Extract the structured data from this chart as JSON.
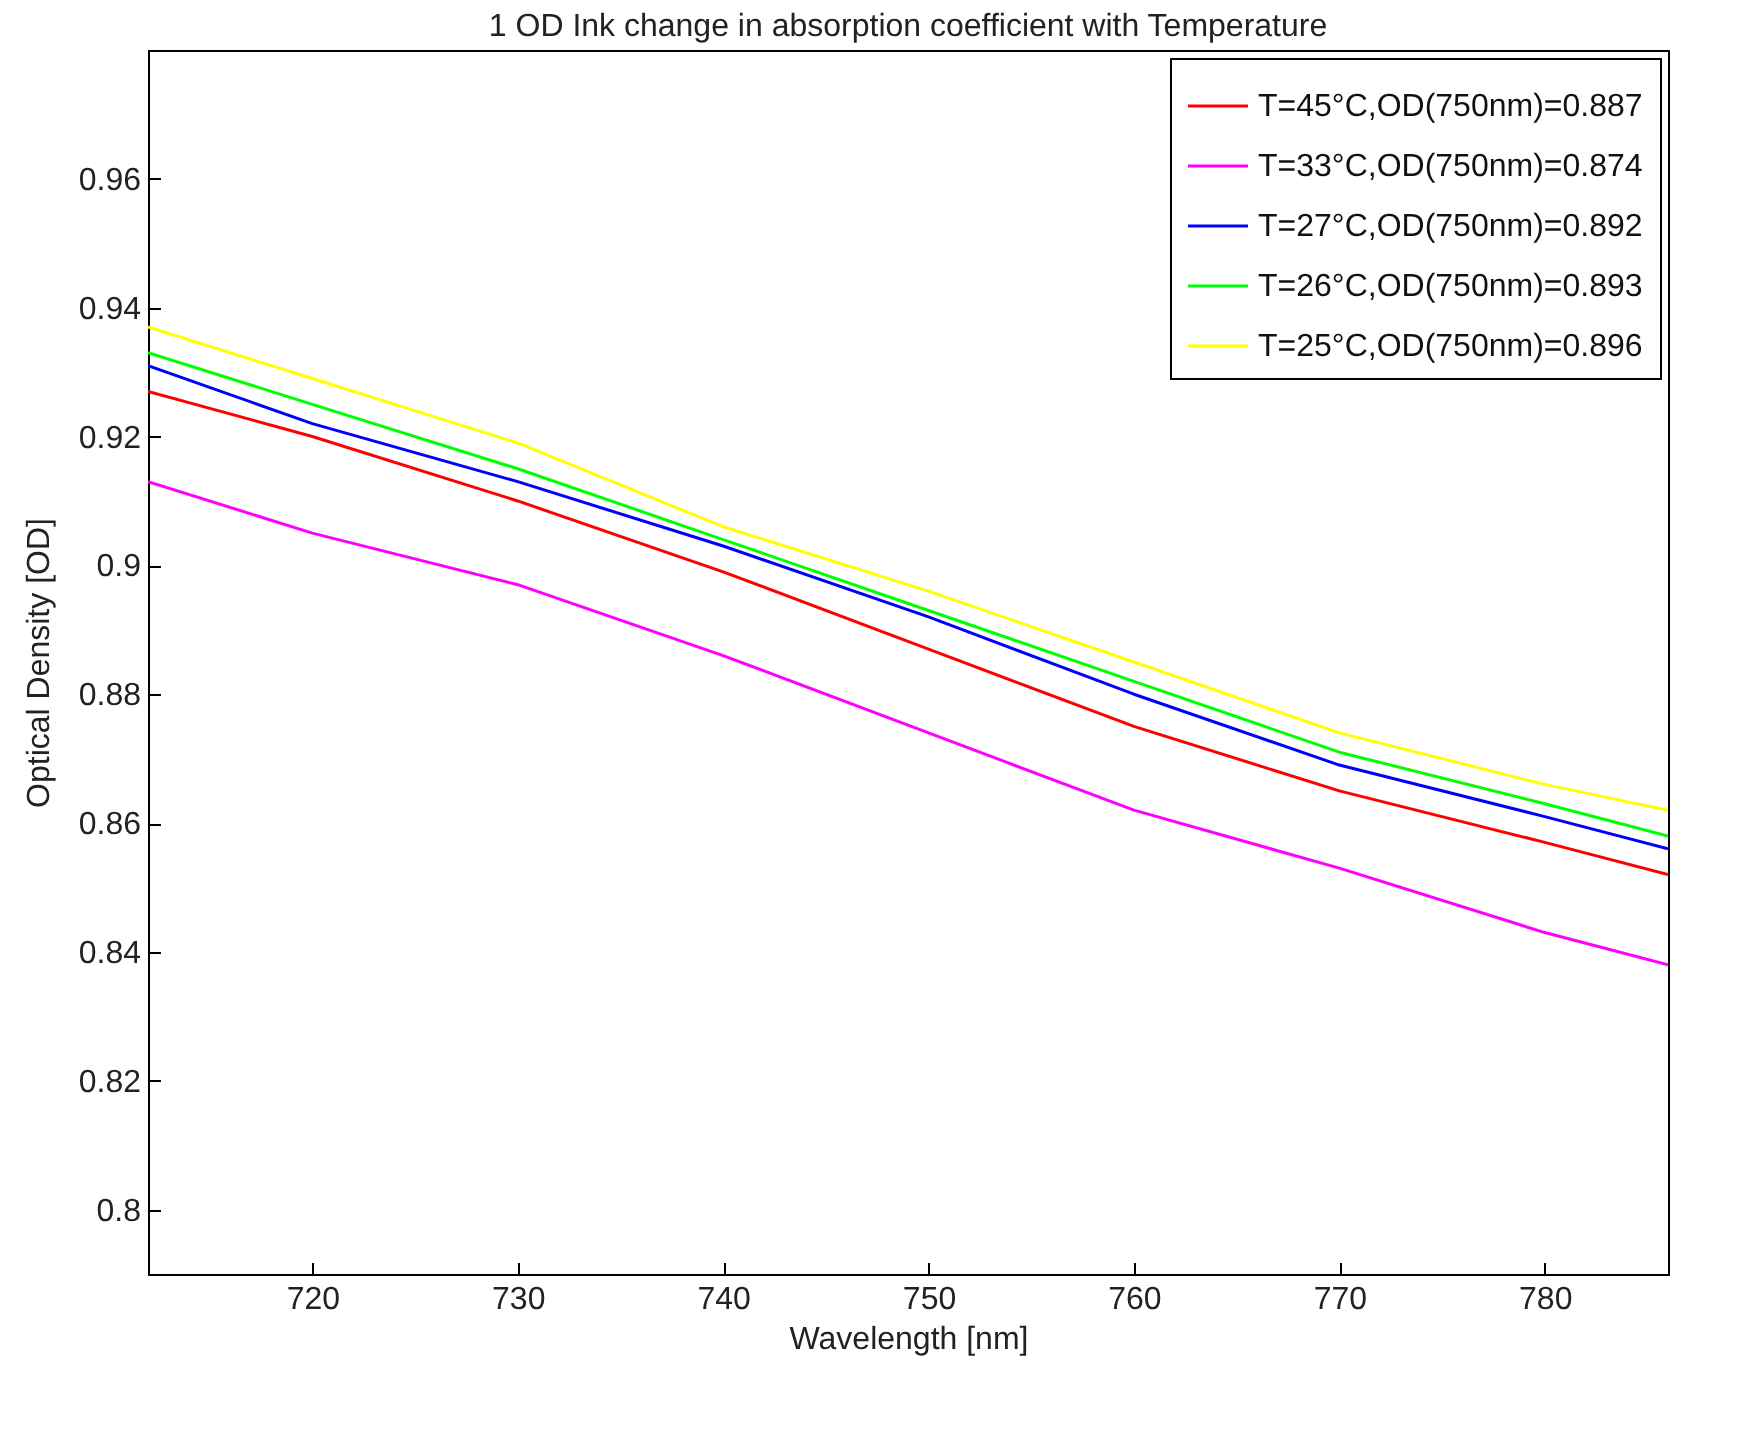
{
  "chart_data": {
    "type": "line",
    "title": "1 OD Ink change in absorption coefficient with Temperature",
    "xlabel": "Wavelength [nm]",
    "ylabel": "Optical Density [OD]",
    "x": [
      712,
      720,
      730,
      740,
      750,
      760,
      770,
      780,
      786
    ],
    "series": [
      {
        "name": "T=45°C,OD(750nm)=0.887",
        "color": "#ff0000",
        "values": [
          0.927,
          0.92,
          0.91,
          0.899,
          0.887,
          0.875,
          0.865,
          0.857,
          0.852
        ]
      },
      {
        "name": "T=33°C,OD(750nm)=0.874",
        "color": "#ff00ff",
        "values": [
          0.913,
          0.905,
          0.897,
          0.886,
          0.874,
          0.862,
          0.853,
          0.843,
          0.838
        ]
      },
      {
        "name": "T=27°C,OD(750nm)=0.892",
        "color": "#0000ff",
        "values": [
          0.931,
          0.922,
          0.913,
          0.903,
          0.892,
          0.88,
          0.869,
          0.861,
          0.856
        ]
      },
      {
        "name": "T=26°C,OD(750nm)=0.893",
        "color": "#00ff00",
        "values": [
          0.933,
          0.925,
          0.915,
          0.904,
          0.893,
          0.882,
          0.871,
          0.863,
          0.858
        ]
      },
      {
        "name": "T=25°C,OD(750nm)=0.896",
        "color": "#ffff00",
        "values": [
          0.937,
          0.929,
          0.919,
          0.906,
          0.896,
          0.885,
          0.874,
          0.866,
          0.862
        ]
      }
    ],
    "xlim": [
      712,
      786
    ],
    "xticks": [
      720,
      730,
      740,
      750,
      760,
      770,
      780
    ],
    "ylim": [
      0.79,
      0.98
    ],
    "yticks": [
      0.8,
      0.82,
      0.84,
      0.86,
      0.88,
      0.9,
      0.92,
      0.94,
      0.96
    ],
    "legend": "top right",
    "grid": false
  }
}
